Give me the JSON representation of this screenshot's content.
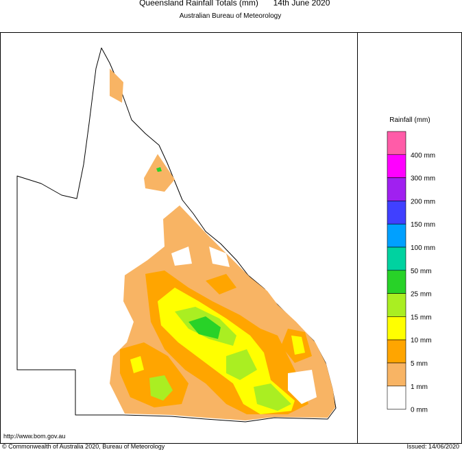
{
  "header": {
    "title": "Queensland Rainfall Totals (mm)",
    "date": "14th June 2020",
    "subtitle": "Australian Bureau of Meteorology"
  },
  "legend": {
    "title": "Rainfall (mm)",
    "items": [
      {
        "label": null,
        "color": "#ff5ca8"
      },
      {
        "label": "400 mm",
        "color": "#ff00ff"
      },
      {
        "label": "300 mm",
        "color": "#a020f0"
      },
      {
        "label": "200 mm",
        "color": "#4040ff"
      },
      {
        "label": "150 mm",
        "color": "#00a0ff"
      },
      {
        "label": "100 mm",
        "color": "#00d2a0"
      },
      {
        "label": "50 mm",
        "color": "#28d228"
      },
      {
        "label": "25 mm",
        "color": "#aaee22"
      },
      {
        "label": "15 mm",
        "color": "#ffff00"
      },
      {
        "label": "10 mm",
        "color": "#ffa500"
      },
      {
        "label": "5 mm",
        "color": "#f8b464"
      },
      {
        "label": "1 mm",
        "color": "#ffffff"
      }
    ],
    "last_label": "0 mm"
  },
  "footer": {
    "url": "http://www.bom.gov.au",
    "copyright": "© Commonwealth of Australia 2020, Bureau of Meteorology",
    "issued": "Issued: 14/06/2020"
  }
}
